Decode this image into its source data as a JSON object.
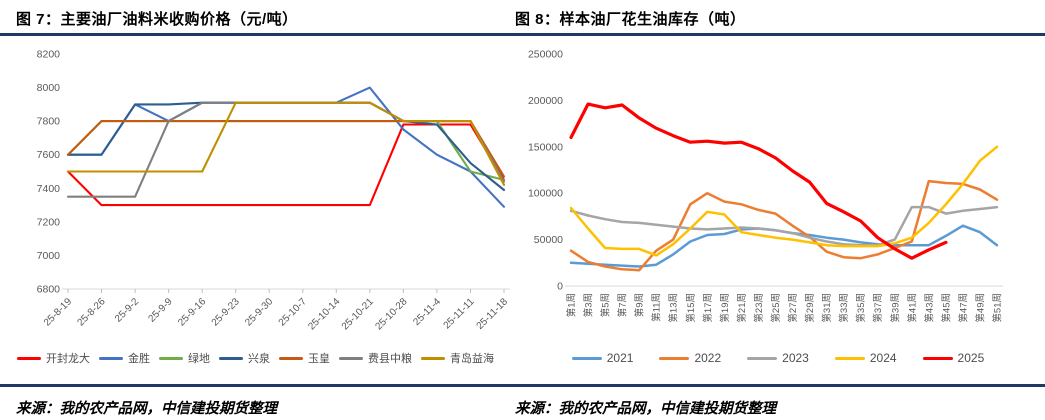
{
  "figures": [
    {
      "title": "图 7：主要油厂油料米收购价格（元/吨）",
      "source": "来源：我的农产品网，中信建投期货整理"
    },
    {
      "title": "图 8：样本油厂花生油库存（吨）",
      "source": "来源：我的农产品网，中信建投期货整理"
    }
  ],
  "colors": {
    "title_rule": "#1F3864",
    "axis_line": "#D9D9D9",
    "tick_label": "#595959"
  },
  "chart_data": [
    {
      "type": "line",
      "title": "主要油厂油料米收购价格（元/吨）",
      "xlabel": "",
      "ylabel": "",
      "ylim": [
        6800,
        8200
      ],
      "ytick_step": 200,
      "grid": false,
      "legend_position": "bottom",
      "categories": [
        "25-8-19",
        "25-8-26",
        "25-9-2",
        "25-9-9",
        "25-9-16",
        "25-9-23",
        "25-9-30",
        "25-10-7",
        "25-10-14",
        "25-10-21",
        "25-10-28",
        "25-11-4",
        "25-11-11",
        "25-11-18"
      ],
      "series": [
        {
          "name": "开封龙大",
          "color": "#FF0000",
          "values": [
            7500,
            7300,
            7300,
            7300,
            7300,
            7300,
            7300,
            7300,
            7300,
            7300,
            7780,
            7780,
            7780,
            7450
          ]
        },
        {
          "name": "金胜",
          "color": "#4472C4",
          "values": [
            7600,
            7600,
            7900,
            7800,
            7910,
            7910,
            7910,
            7910,
            7910,
            8000,
            7750,
            7600,
            7500,
            7290
          ]
        },
        {
          "name": "绿地",
          "color": "#70AD47",
          "values": [
            7600,
            7800,
            7800,
            7800,
            7800,
            7800,
            7800,
            7800,
            7800,
            7800,
            7800,
            7800,
            7500,
            7450
          ]
        },
        {
          "name": "兴泉",
          "color": "#2E5E91",
          "values": [
            7600,
            7600,
            7900,
            7900,
            7910,
            7910,
            7910,
            7910,
            7910,
            7910,
            7800,
            7780,
            7550,
            7390
          ]
        },
        {
          "name": "玉皇",
          "color": "#C55A11",
          "values": [
            7600,
            7800,
            7800,
            7800,
            7800,
            7800,
            7800,
            7800,
            7800,
            7800,
            7800,
            7800,
            7800,
            7470
          ]
        },
        {
          "name": "费县中粮",
          "color": "#7F7F7F",
          "values": [
            7350,
            7350,
            7350,
            7800,
            7910,
            7910,
            7910,
            7910,
            7910,
            7910,
            7800,
            7800,
            7800,
            7440
          ]
        },
        {
          "name": "青岛益海",
          "color": "#BF8F00",
          "values": [
            7500,
            7500,
            7500,
            7500,
            7500,
            7910,
            7910,
            7910,
            7910,
            7910,
            7800,
            7800,
            7800,
            7420
          ]
        }
      ]
    },
    {
      "type": "line",
      "title": "样本油厂花生油库存（吨）",
      "xlabel": "",
      "ylabel": "",
      "ylim": [
        0,
        250000
      ],
      "ytick_step": 50000,
      "grid": false,
      "legend_position": "bottom",
      "categories": [
        "第1周",
        "第3周",
        "第5周",
        "第7周",
        "第9周",
        "第11周",
        "第13周",
        "第15周",
        "第17周",
        "第19周",
        "第21周",
        "第23周",
        "第25周",
        "第27周",
        "第29周",
        "第31周",
        "第33周",
        "第35周",
        "第37周",
        "第39周",
        "第41周",
        "第43周",
        "第45周",
        "第47周",
        "第49周",
        "第51周"
      ],
      "series": [
        {
          "name": "2021",
          "color": "#5B9BD5",
          "values": [
            25000,
            24000,
            23000,
            22000,
            21000,
            23000,
            34000,
            48000,
            55000,
            56000,
            61000,
            62000,
            60000,
            57000,
            55000,
            52000,
            50000,
            47000,
            45000,
            44000,
            44000,
            44000,
            54000,
            65000,
            58000,
            44000
          ]
        },
        {
          "name": "2022",
          "color": "#ED7D31",
          "values": [
            38000,
            26000,
            21000,
            18000,
            17000,
            38000,
            50000,
            88000,
            100000,
            91000,
            88000,
            82000,
            78000,
            65000,
            53000,
            37000,
            31000,
            30000,
            34000,
            41000,
            48000,
            113000,
            111000,
            110000,
            104000,
            93000
          ]
        },
        {
          "name": "2023",
          "color": "#A5A5A5",
          "values": [
            81000,
            76000,
            72000,
            69000,
            68000,
            66000,
            64000,
            62000,
            61000,
            62000,
            63000,
            62000,
            60000,
            57000,
            52000,
            48000,
            45000,
            44000,
            44000,
            50000,
            85000,
            85000,
            78000,
            81000,
            83000,
            85000
          ]
        },
        {
          "name": "2024",
          "color": "#FFC000",
          "values": [
            84000,
            62000,
            41000,
            40000,
            40000,
            33000,
            45000,
            62000,
            80000,
            77000,
            58000,
            55000,
            52000,
            50000,
            47000,
            44000,
            43000,
            43000,
            43000,
            46000,
            52000,
            68000,
            88000,
            110000,
            135000,
            150000
          ]
        },
        {
          "name": "2025",
          "color": "#FF0000",
          "width": 3.2,
          "values": [
            160000,
            196000,
            192000,
            195000,
            181000,
            170000,
            162000,
            155000,
            156000,
            154000,
            155000,
            148000,
            138000,
            124000,
            112000,
            89000,
            80000,
            70000,
            52000,
            40000,
            30000,
            39000,
            47000
          ]
        }
      ]
    }
  ]
}
